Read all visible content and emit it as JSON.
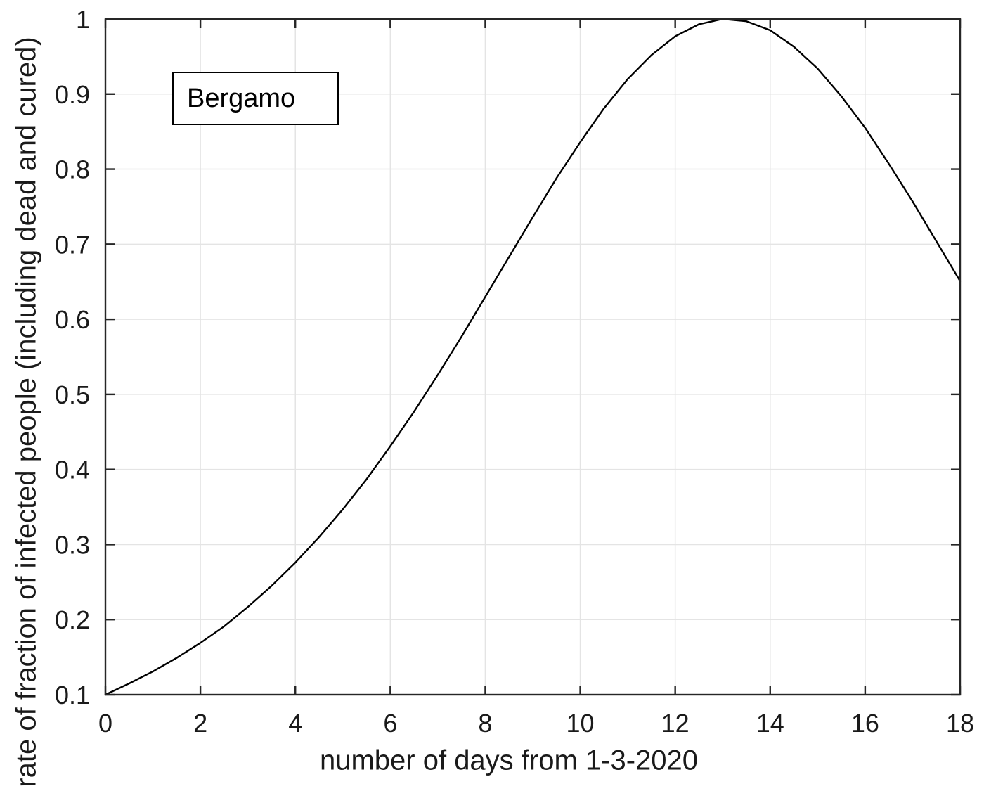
{
  "chart_data": {
    "type": "line",
    "xlabel": "number of days from 1-3-2020",
    "ylabel": "rate of fraction of infected people (including dead and cured)",
    "xlim": [
      0,
      18
    ],
    "ylim": [
      0.1,
      1.0
    ],
    "xticks": [
      0,
      2,
      4,
      6,
      8,
      10,
      12,
      14,
      16,
      18
    ],
    "xtick_labels": [
      "0",
      "2",
      "4",
      "6",
      "8",
      "10",
      "12",
      "14",
      "16",
      "18"
    ],
    "yticks": [
      0.1,
      0.2,
      0.3,
      0.4,
      0.5,
      0.6,
      0.7,
      0.8,
      0.9,
      1.0
    ],
    "ytick_labels": [
      "0.1",
      "0.2",
      "0.3",
      "0.4",
      "0.5",
      "0.6",
      "0.7",
      "0.8",
      "0.9",
      "1"
    ],
    "grid": true,
    "legend": {
      "label": "Bergamo",
      "position": "upper-left"
    },
    "series": [
      {
        "name": "Bergamo",
        "color": "#000000",
        "x": [
          0,
          0.5,
          1,
          1.5,
          2,
          2.5,
          3,
          3.5,
          4,
          4.5,
          5,
          5.5,
          6,
          6.5,
          7,
          7.5,
          8,
          8.5,
          9,
          9.5,
          10,
          10.5,
          11,
          11.5,
          12,
          12.5,
          13,
          13.5,
          14,
          14.5,
          15,
          15.5,
          16,
          16.5,
          17,
          17.5,
          18
        ],
        "y": [
          0.1,
          0.115,
          0.131,
          0.149,
          0.169,
          0.191,
          0.217,
          0.245,
          0.276,
          0.31,
          0.347,
          0.387,
          0.431,
          0.477,
          0.526,
          0.577,
          0.63,
          0.683,
          0.736,
          0.788,
          0.836,
          0.881,
          0.92,
          0.952,
          0.977,
          0.993,
          1.0,
          0.997,
          0.985,
          0.963,
          0.934,
          0.897,
          0.855,
          0.807,
          0.757,
          0.704,
          0.651
        ]
      }
    ],
    "peak": {
      "x": 13.1,
      "y": 1.0
    },
    "start": {
      "x": 0,
      "y": 0.1
    },
    "end": {
      "x": 18,
      "y": 0.651
    }
  },
  "colors": {
    "background": "#ffffff",
    "axis": "#262626",
    "grid": "#e4e4e4",
    "line": "#000000",
    "text": "#1a1a1a",
    "legend_border": "#000000"
  }
}
